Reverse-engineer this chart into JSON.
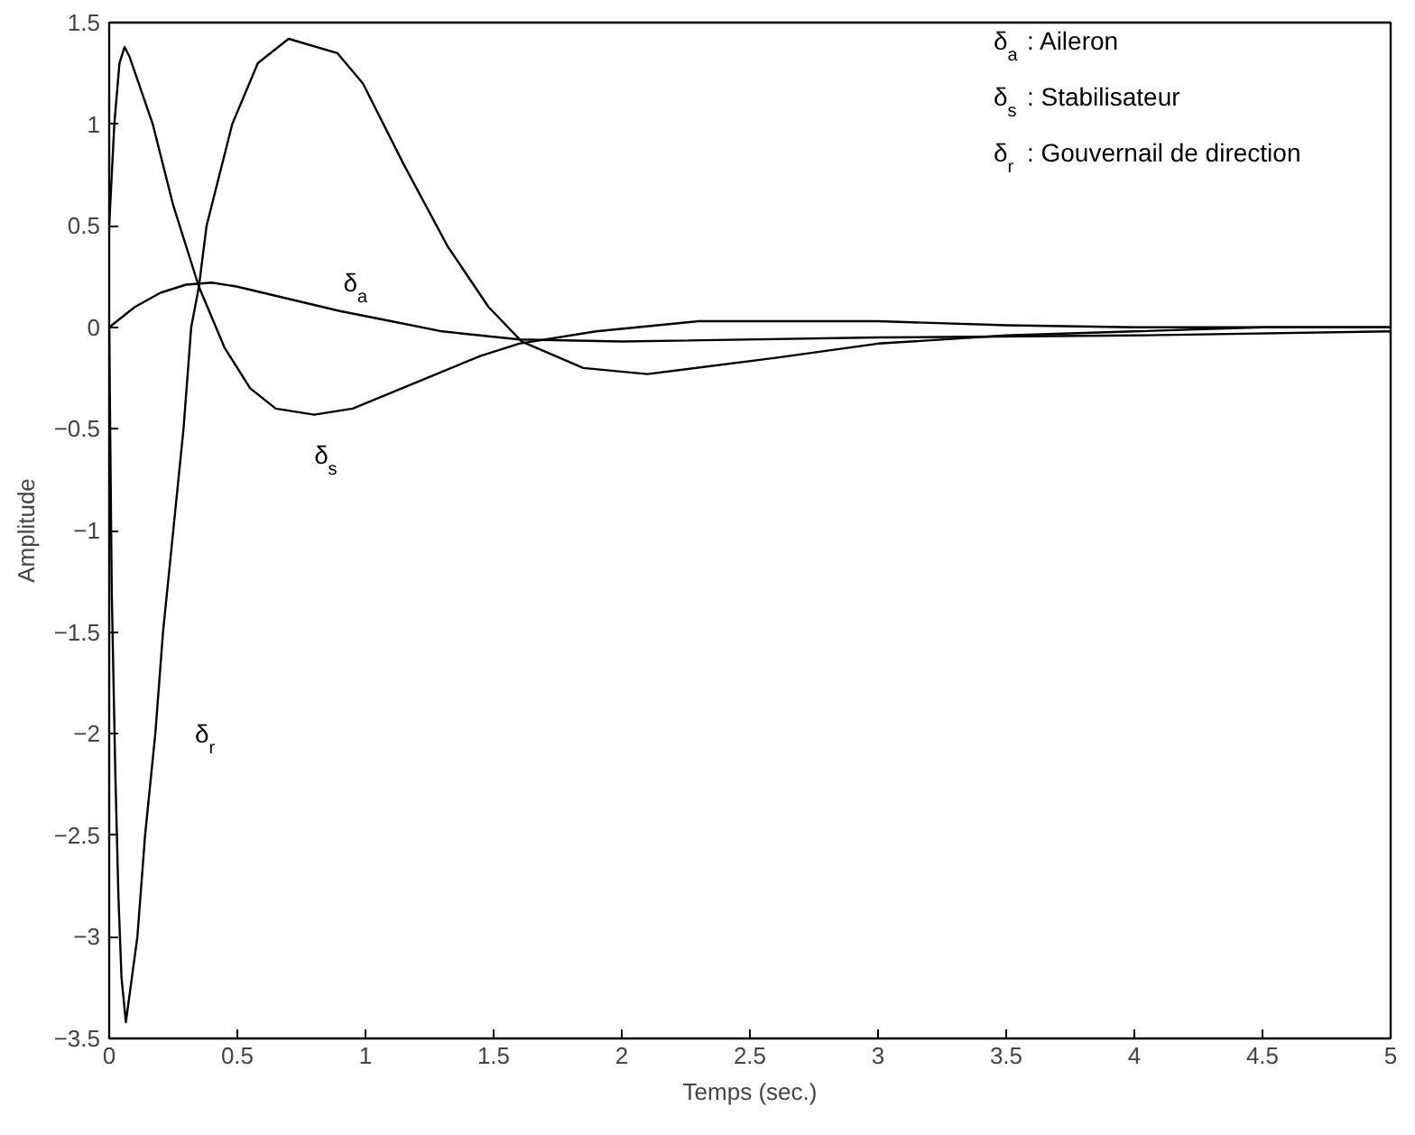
{
  "chart_data": {
    "type": "line",
    "xlabel": "Temps (sec.)",
    "ylabel": "Amplitude",
    "xlim": [
      0,
      5
    ],
    "ylim": [
      -3.5,
      1.5
    ],
    "xticks": [
      0,
      0.5,
      1,
      1.5,
      2,
      2.5,
      3,
      3.5,
      4,
      4.5,
      5
    ],
    "yticks": [
      -3.5,
      -3,
      -2.5,
      -2,
      -1.5,
      -1,
      -0.5,
      0,
      0.5,
      1,
      1.5
    ],
    "grid": false,
    "line_style": "solid",
    "marker": "none",
    "series": [
      {
        "name": "δ$_{a}$",
        "color": "#000000",
        "x": [
          0,
          0.1,
          0.2,
          0.3,
          0.4,
          0.5,
          0.7,
          0.9,
          1.1,
          1.3,
          1.6,
          2.0,
          3.0,
          4.0,
          5.0
        ],
        "values": [
          0,
          0.1,
          0.17,
          0.21,
          0.22,
          0.2,
          0.14,
          0.08,
          0.03,
          -0.02,
          -0.06,
          -0.07,
          -0.05,
          -0.04,
          -0.02
        ]
      },
      {
        "name": "δ$_{s}$",
        "color": "#000000",
        "x": [
          0,
          0.02,
          0.04,
          0.06,
          0.08,
          0.17,
          0.25,
          0.35,
          0.45,
          0.55,
          0.65,
          0.8,
          0.95,
          1.2,
          1.45,
          1.6,
          1.9,
          2.3,
          3.0,
          3.5,
          4.0,
          5.0
        ],
        "values": [
          0.5,
          1.0,
          1.3,
          1.38,
          1.33,
          1.0,
          0.6,
          0.2,
          -0.1,
          -0.3,
          -0.4,
          -0.43,
          -0.4,
          -0.27,
          -0.14,
          -0.08,
          -0.02,
          0.03,
          0.03,
          0.01,
          0,
          0
        ]
      },
      {
        "name": "δ$_{r}$",
        "color": "#000000",
        "x": [
          0,
          0.01,
          0.024,
          0.036,
          0.048,
          0.065,
          0.11,
          0.14,
          0.18,
          0.21,
          0.25,
          0.29,
          0.32,
          0.35,
          0.38,
          0.48,
          0.58,
          0.7,
          0.89,
          0.99,
          1.15,
          1.32,
          1.48,
          1.61,
          1.85,
          2.1,
          2.6,
          3.0,
          3.5,
          4.0,
          4.5,
          5.0
        ],
        "values": [
          0,
          -1.3,
          -2.2,
          -2.8,
          -3.2,
          -3.42,
          -3.0,
          -2.5,
          -2.0,
          -1.5,
          -1.0,
          -0.5,
          0,
          0.2,
          0.5,
          1.0,
          1.3,
          1.42,
          1.35,
          1.2,
          0.8,
          0.4,
          0.1,
          -0.07,
          -0.2,
          -0.23,
          -0.15,
          -0.08,
          -0.04,
          -0.02,
          0,
          0
        ]
      }
    ],
    "annotations": [
      "δ$_{a}$ : Aileron",
      "δ$_{s}$ : Stabilisateur",
      "δ$_{r}$ : Gouvernail de direction"
    ]
  }
}
